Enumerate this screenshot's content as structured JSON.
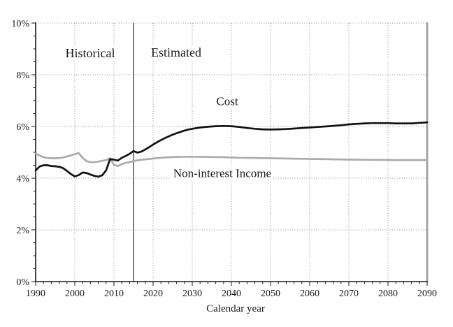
{
  "chart_data": {
    "type": "line",
    "title": "",
    "xlabel": "Calendar year",
    "ylabel": "",
    "xlim": [
      1990,
      2090
    ],
    "ylim": [
      0,
      10
    ],
    "x_major_ticks": [
      1990,
      2000,
      2010,
      2020,
      2030,
      2040,
      2050,
      2060,
      2070,
      2080,
      2090
    ],
    "x_tick_labels": [
      "1990",
      "2000",
      "2010",
      "2020",
      "2030",
      "2040",
      "2050",
      "2060",
      "2070",
      "2080",
      "2090"
    ],
    "x_minor_step": 2,
    "y_major_ticks": [
      0,
      2,
      4,
      6,
      8,
      10
    ],
    "y_tick_labels": [
      "0%",
      "2%",
      "4%",
      "6%",
      "8%",
      "10%"
    ],
    "y_minor_step": 0.5,
    "grid": true,
    "legend": "none (inline labels)",
    "divider_year": 2015,
    "annotations": [
      {
        "id": "historical",
        "text": "Historical"
      },
      {
        "id": "estimated",
        "text": "Estimated"
      },
      {
        "id": "cost",
        "text": "Cost"
      },
      {
        "id": "non_interest_income",
        "text": "Non-interest Income"
      }
    ],
    "colors": {
      "cost_line": "#111111",
      "income_line": "#ababab",
      "grid": "#8a8a8a",
      "axis": "#1a1a1a",
      "right_border": "#a6a6a6",
      "divider": "#3a3a3a"
    },
    "series": [
      {
        "name": "Cost",
        "unit": "percent",
        "points": [
          [
            1990,
            4.3
          ],
          [
            1991,
            4.45
          ],
          [
            1992,
            4.5
          ],
          [
            1993,
            4.5
          ],
          [
            1994,
            4.47
          ],
          [
            1995,
            4.46
          ],
          [
            1996,
            4.44
          ],
          [
            1997,
            4.39
          ],
          [
            1998,
            4.28
          ],
          [
            1999,
            4.16
          ],
          [
            2000,
            4.07
          ],
          [
            2001,
            4.12
          ],
          [
            2002,
            4.22
          ],
          [
            2003,
            4.2
          ],
          [
            2004,
            4.14
          ],
          [
            2005,
            4.09
          ],
          [
            2006,
            4.06
          ],
          [
            2007,
            4.11
          ],
          [
            2008,
            4.3
          ],
          [
            2009,
            4.74
          ],
          [
            2010,
            4.72
          ],
          [
            2011,
            4.68
          ],
          [
            2012,
            4.79
          ],
          [
            2013,
            4.86
          ],
          [
            2014,
            4.94
          ],
          [
            2015,
            5.05
          ],
          [
            2016,
            4.99
          ],
          [
            2017,
            5.03
          ],
          [
            2018,
            5.11
          ],
          [
            2019,
            5.2
          ],
          [
            2020,
            5.3
          ],
          [
            2021,
            5.39
          ],
          [
            2022,
            5.47
          ],
          [
            2023,
            5.55
          ],
          [
            2024,
            5.62
          ],
          [
            2025,
            5.68
          ],
          [
            2026,
            5.74
          ],
          [
            2027,
            5.79
          ],
          [
            2028,
            5.84
          ],
          [
            2029,
            5.88
          ],
          [
            2030,
            5.91
          ],
          [
            2032,
            5.96
          ],
          [
            2034,
            5.99
          ],
          [
            2036,
            6.01
          ],
          [
            2038,
            6.02
          ],
          [
            2040,
            6.01
          ],
          [
            2042,
            5.98
          ],
          [
            2044,
            5.94
          ],
          [
            2046,
            5.91
          ],
          [
            2048,
            5.89
          ],
          [
            2050,
            5.88
          ],
          [
            2052,
            5.89
          ],
          [
            2054,
            5.9
          ],
          [
            2056,
            5.92
          ],
          [
            2058,
            5.94
          ],
          [
            2060,
            5.96
          ],
          [
            2062,
            5.98
          ],
          [
            2065,
            6.01
          ],
          [
            2068,
            6.05
          ],
          [
            2070,
            6.08
          ],
          [
            2072,
            6.1
          ],
          [
            2074,
            6.12
          ],
          [
            2076,
            6.13
          ],
          [
            2078,
            6.13
          ],
          [
            2080,
            6.13
          ],
          [
            2082,
            6.12
          ],
          [
            2084,
            6.12
          ],
          [
            2086,
            6.12
          ],
          [
            2088,
            6.14
          ],
          [
            2090,
            6.16
          ]
        ]
      },
      {
        "name": "Non-interest Income",
        "unit": "percent",
        "points": [
          [
            1990,
            4.95
          ],
          [
            1991,
            4.88
          ],
          [
            1992,
            4.81
          ],
          [
            1993,
            4.78
          ],
          [
            1994,
            4.77
          ],
          [
            1995,
            4.77
          ],
          [
            1996,
            4.78
          ],
          [
            1997,
            4.8
          ],
          [
            1998,
            4.84
          ],
          [
            1999,
            4.88
          ],
          [
            2000,
            4.93
          ],
          [
            2001,
            4.97
          ],
          [
            2002,
            4.78
          ],
          [
            2003,
            4.66
          ],
          [
            2004,
            4.62
          ],
          [
            2005,
            4.62
          ],
          [
            2006,
            4.64
          ],
          [
            2007,
            4.67
          ],
          [
            2008,
            4.7
          ],
          [
            2009,
            4.77
          ],
          [
            2010,
            4.52
          ],
          [
            2011,
            4.47
          ],
          [
            2012,
            4.54
          ],
          [
            2013,
            4.59
          ],
          [
            2014,
            4.62
          ],
          [
            2015,
            4.66
          ],
          [
            2016,
            4.69
          ],
          [
            2017,
            4.71
          ],
          [
            2018,
            4.73
          ],
          [
            2019,
            4.74
          ],
          [
            2020,
            4.76
          ],
          [
            2022,
            4.79
          ],
          [
            2024,
            4.81
          ],
          [
            2026,
            4.82
          ],
          [
            2028,
            4.83
          ],
          [
            2030,
            4.83
          ],
          [
            2034,
            4.82
          ],
          [
            2038,
            4.81
          ],
          [
            2042,
            4.79
          ],
          [
            2046,
            4.78
          ],
          [
            2050,
            4.77
          ],
          [
            2054,
            4.76
          ],
          [
            2058,
            4.75
          ],
          [
            2062,
            4.74
          ],
          [
            2066,
            4.73
          ],
          [
            2070,
            4.72
          ],
          [
            2074,
            4.71
          ],
          [
            2078,
            4.71
          ],
          [
            2082,
            4.7
          ],
          [
            2086,
            4.7
          ],
          [
            2090,
            4.7
          ]
        ]
      }
    ]
  }
}
